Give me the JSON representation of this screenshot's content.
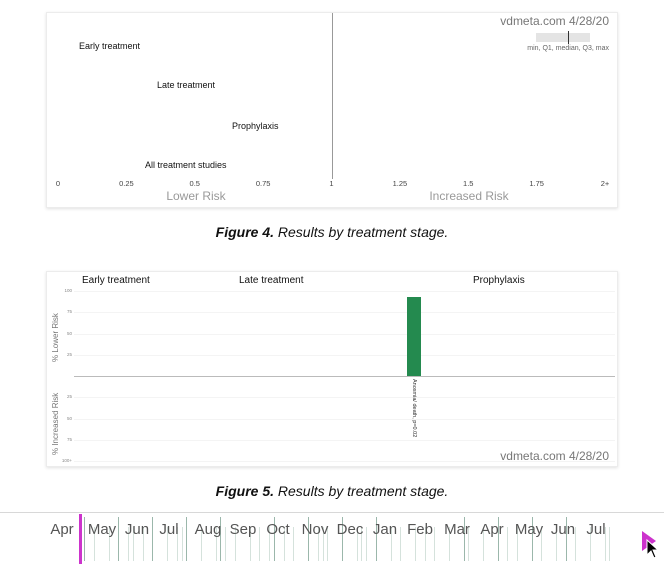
{
  "fig4": {
    "watermark": "vdmeta.com 4/28/20",
    "legend_note": "min, Q1, median, Q3, max",
    "rows": [
      "Early treatment",
      "Late treatment",
      "Prophylaxis",
      "All treatment studies"
    ],
    "lower_risk_label": "Lower Risk",
    "increased_risk_label": "Increased Risk",
    "caption_bold": "Figure 4.",
    "caption_text": " Results by treatment stage."
  },
  "fig5": {
    "stage_headers": [
      "Early treatment",
      "Late treatment",
      "Prophylaxis"
    ],
    "lower_axis_label": "% Lower Risk",
    "increased_axis_label": "% Increased Risk",
    "watermark": "vdmeta.com 4/28/20",
    "caption_bold": "Figure 5.",
    "caption_text": " Results by treatment stage."
  },
  "timeline": {
    "months": [
      "Apr",
      "May",
      "Jun",
      "Jul",
      "Aug",
      "Sep",
      "Oct",
      "Nov",
      "Dec",
      "Jan",
      "Feb",
      "Mar",
      "Apr",
      "May",
      "Jun",
      "Jul"
    ],
    "play_icon": "play-triangle-icon",
    "cursor_icon": "mouse-pointer-icon",
    "accent_color": "#cc33cc"
  },
  "chart_data": [
    {
      "type": "scatter",
      "title": "",
      "categories": [
        "Early treatment",
        "Late treatment",
        "Prophylaxis",
        "All treatment studies"
      ],
      "x_ticks": [
        "0",
        "0.25",
        "0.5",
        "0.75",
        "1",
        "1.25",
        "1.5",
        "1.75",
        "2+"
      ],
      "xlim": [
        0,
        2
      ],
      "annotations": [
        "Lower Risk",
        "Increased Risk",
        "vdmeta.com 4/28/20",
        "min, Q1, median, Q3, max"
      ]
    },
    {
      "type": "bar",
      "groups": [
        "Early treatment",
        "Late treatment",
        "Prophylaxis"
      ],
      "y_ticks_lower": [
        "100",
        "75",
        "50",
        "25"
      ],
      "y_ticks_increased": [
        "25",
        "50",
        "75",
        "100+"
      ],
      "ylim": [
        -100,
        100
      ],
      "bars": [
        {
          "group": "Prophylaxis",
          "label": "Anosmia/ death, p=0.02",
          "value": 93,
          "color": "#248a4f"
        }
      ]
    }
  ]
}
